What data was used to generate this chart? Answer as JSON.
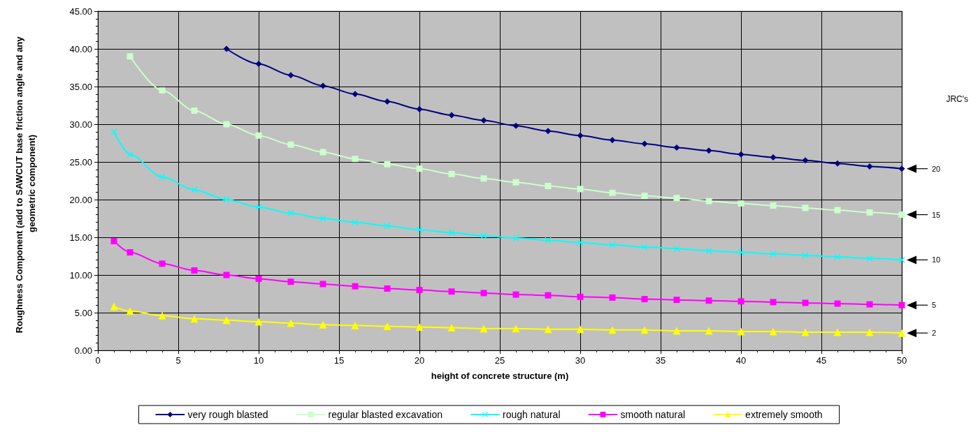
{
  "chart_data": {
    "type": "line",
    "xlabel": "height of concrete structure (m)",
    "ylabel": "Roughness Component (add to SAWCUT base friction angle and any geometric component)",
    "xlim": [
      0,
      50
    ],
    "xticks": [
      0,
      5,
      10,
      15,
      20,
      25,
      30,
      35,
      40,
      45,
      50
    ],
    "ylim": [
      0,
      45
    ],
    "yticks": [
      {
        "value": 0,
        "label": "0.00"
      },
      {
        "value": 5,
        "label": "5.00"
      },
      {
        "value": 10,
        "label": "10.00"
      },
      {
        "value": 15,
        "label": "15.00"
      },
      {
        "value": 20,
        "label": "20.00"
      },
      {
        "value": 25,
        "label": "25.00"
      },
      {
        "value": 30,
        "label": "30.00"
      },
      {
        "value": 35,
        "label": "35.00"
      },
      {
        "value": 40,
        "label": "40.00"
      },
      {
        "value": 45,
        "label": "45.00"
      }
    ],
    "grid": true,
    "legend": "bottom",
    "line_style": "solid",
    "series": [
      {
        "name": "very rough blasted",
        "color": "#000080",
        "marker": "diamond",
        "x": [
          8,
          10,
          12,
          14,
          16,
          18,
          20,
          22,
          24,
          26,
          28,
          30,
          32,
          34,
          36,
          38,
          40,
          42,
          44,
          46,
          48,
          50
        ],
        "values": [
          40,
          38,
          36.5,
          35.1,
          34,
          33,
          32,
          31.2,
          30.5,
          29.8,
          29.1,
          28.5,
          27.9,
          27.4,
          26.9,
          26.5,
          26,
          25.6,
          25.2,
          24.8,
          24.4,
          24.1
        ]
      },
      {
        "name": "regular blasted excavation",
        "color": "#ccffcc",
        "marker": "square",
        "x": [
          2,
          4,
          6,
          8,
          10,
          12,
          14,
          16,
          18,
          20,
          22,
          24,
          26,
          28,
          30,
          32,
          34,
          36,
          38,
          40,
          42,
          44,
          46,
          48,
          50
        ],
        "values": [
          39,
          34.5,
          31.8,
          30,
          28.5,
          27.3,
          26.3,
          25.4,
          24.7,
          24.1,
          23.4,
          22.8,
          22.3,
          21.8,
          21.4,
          20.9,
          20.5,
          20.2,
          19.8,
          19.5,
          19.2,
          18.9,
          18.6,
          18.3,
          18
        ]
      },
      {
        "name": "rough natural",
        "color": "#00ffff",
        "marker": "cross",
        "x": [
          1,
          2,
          4,
          6,
          8,
          10,
          12,
          14,
          16,
          18,
          20,
          22,
          24,
          26,
          28,
          30,
          32,
          34,
          36,
          38,
          40,
          42,
          44,
          46,
          48,
          50
        ],
        "values": [
          29,
          26,
          23,
          21.3,
          20,
          19,
          18.2,
          17.5,
          17,
          16.5,
          16,
          15.6,
          15.2,
          14.9,
          14.6,
          14.3,
          14,
          13.7,
          13.5,
          13.2,
          13,
          12.8,
          12.6,
          12.4,
          12.2,
          12
        ]
      },
      {
        "name": "smooth natural",
        "color": "#ff00ff",
        "marker": "square",
        "x": [
          1,
          2,
          4,
          6,
          8,
          10,
          12,
          14,
          16,
          18,
          20,
          22,
          24,
          26,
          28,
          30,
          32,
          34,
          36,
          38,
          40,
          42,
          44,
          46,
          48,
          50
        ],
        "values": [
          14.5,
          13,
          11.5,
          10.6,
          10,
          9.5,
          9.1,
          8.8,
          8.5,
          8.2,
          8,
          7.8,
          7.6,
          7.4,
          7.3,
          7.1,
          7,
          6.8,
          6.7,
          6.6,
          6.5,
          6.4,
          6.3,
          6.2,
          6.1,
          6
        ]
      },
      {
        "name": "extremely smooth",
        "color": "#ffff00",
        "marker": "triangle",
        "x": [
          1,
          2,
          4,
          6,
          8,
          10,
          12,
          14,
          16,
          18,
          20,
          22,
          24,
          26,
          28,
          30,
          32,
          34,
          36,
          38,
          40,
          42,
          44,
          46,
          48,
          50
        ],
        "values": [
          5.8,
          5.2,
          4.6,
          4.2,
          4,
          3.8,
          3.6,
          3.4,
          3.3,
          3.2,
          3.1,
          3,
          2.9,
          2.9,
          2.8,
          2.8,
          2.7,
          2.7,
          2.6,
          2.6,
          2.5,
          2.5,
          2.4,
          2.4,
          2.4,
          2.3
        ]
      }
    ],
    "annotations": [
      "JRC's",
      "20",
      "15",
      "10",
      "5",
      "2"
    ]
  }
}
